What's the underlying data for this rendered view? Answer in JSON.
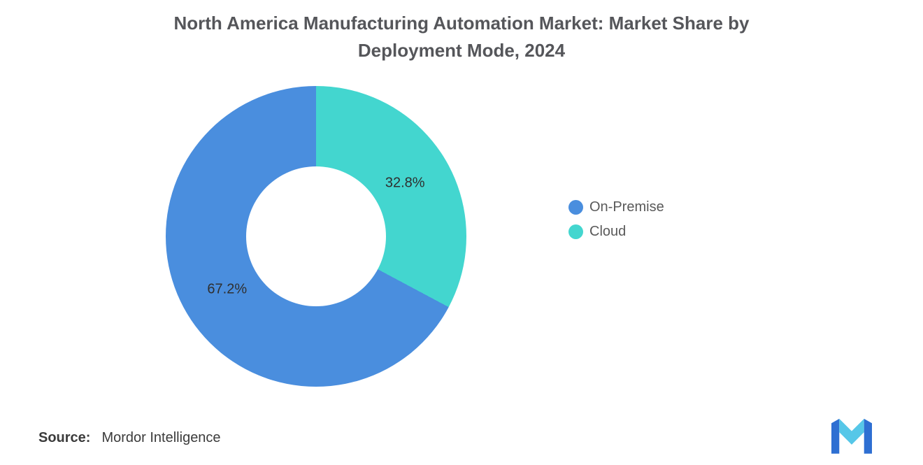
{
  "title": "North America Manufacturing Automation Market: Market Share by Deployment Mode, 2024",
  "chart_data": {
    "type": "pie",
    "subtype": "donut",
    "title": "North America Manufacturing Automation Market: Market Share by Deployment Mode, 2024",
    "categories": [
      "On-Premise",
      "Cloud"
    ],
    "values": [
      67.2,
      32.8
    ],
    "labels": [
      "67.2%",
      "32.8%"
    ],
    "colors": [
      "#4A8EDE",
      "#43D6CF"
    ],
    "inner_radius_ratio": 0.465,
    "start_angle_deg": 0,
    "direction": "counterclockwise",
    "legend_position": "right",
    "grid": false
  },
  "legend": {
    "items": [
      {
        "label": "On-Premise",
        "color": "#4A8EDE"
      },
      {
        "label": "Cloud",
        "color": "#43D6CF"
      }
    ]
  },
  "source": {
    "label": "Source:",
    "value": "Mordor Intelligence"
  },
  "logo": {
    "name": "mordor-intelligence-logo",
    "primary_color": "#2E6FD2",
    "accent_color": "#56C7E8"
  }
}
